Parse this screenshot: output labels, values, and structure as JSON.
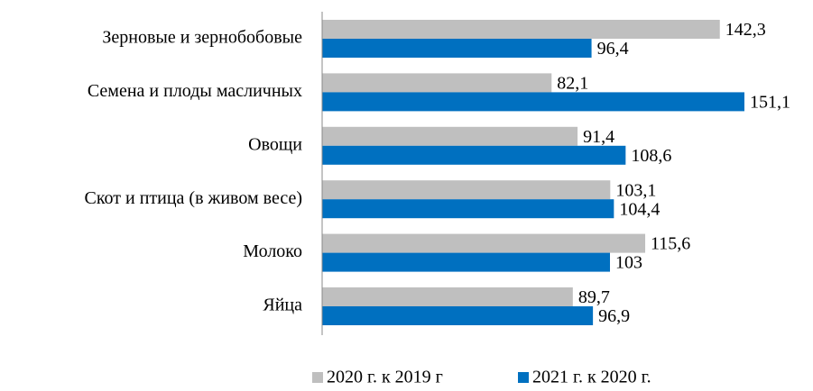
{
  "chart_data": {
    "type": "bar",
    "orientation": "horizontal",
    "categories": [
      "Зерновые и зернобобовые",
      "Семена и плоды масличных",
      "Овощи",
      "Скот и птица (в живом весе)",
      "Молоко",
      "Яйца"
    ],
    "series": [
      {
        "name": "2020 г. к 2019 г",
        "color": "#bfbfbf",
        "values": [
          142.3,
          82.1,
          91.4,
          103.1,
          115.6,
          89.7
        ],
        "value_labels": [
          "142,3",
          "82,1",
          "91,4",
          "103,1",
          "115,6",
          "89,7"
        ]
      },
      {
        "name": "2021 г. к 2020 г.",
        "color": "#0070c0",
        "values": [
          96.4,
          151.1,
          108.6,
          104.4,
          103,
          96.9
        ],
        "value_labels": [
          "96,4",
          "151,1",
          "108,6",
          "104,4",
          "103",
          "96,9"
        ]
      }
    ],
    "xlim": [
      0,
      175
    ],
    "legend": "bottom"
  }
}
